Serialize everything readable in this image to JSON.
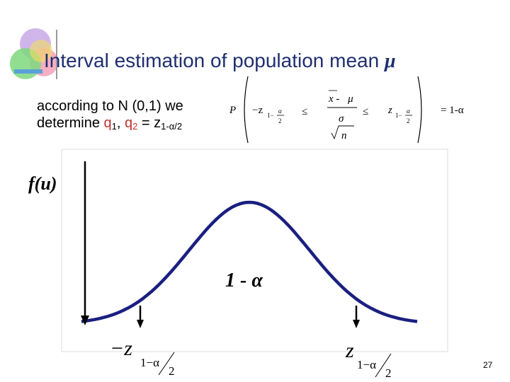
{
  "title": "Interval estimation of population mean ",
  "title_symbol": "μ",
  "intro": {
    "line1": "according to N (0,1) we",
    "prefix": "determine ",
    "q1": "q",
    "q1_sub": "1",
    "sep": ", ",
    "q2": "q",
    "q2_sub": "2",
    "eq": " = ",
    "z": "z",
    "z_sub": "1-α/2"
  },
  "formula": {
    "p": "P",
    "left": "−z",
    "left_sub": "1−",
    "left_frac_num": "α",
    "left_frac_den": "2",
    "le1": "≤",
    "num": "x - ",
    "num_mu": "μ",
    "den_sigma": "σ",
    "den_n": "n",
    "le2": "≤",
    "right": "z",
    "right_sub": "1−",
    "right_frac_num": "α",
    "right_frac_den": "2",
    "result": "=  1-α"
  },
  "graph": {
    "y_label": "f(u)",
    "center_label": "1 - ",
    "center_alpha": "α",
    "left_label": "−z",
    "left_sub": "1−α",
    "left_den": "2",
    "right_label": "z",
    "right_sub": "1−α",
    "right_den": "2"
  },
  "page_number": "27"
}
